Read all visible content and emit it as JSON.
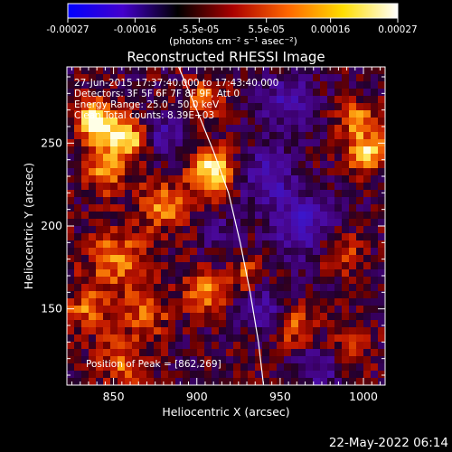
{
  "colorbar": {
    "tick_labels": [
      "-0.00027",
      "-0.00016",
      "-5.5e-05",
      "5.5e-05",
      "0.00016",
      "0.00027"
    ],
    "tick_values": [
      -0.00027,
      -0.00016,
      -5.5e-05,
      5.5e-05,
      0.00016,
      0.00027
    ],
    "range": [
      -0.00027,
      0.00027
    ],
    "units": "(photons cm⁻² s⁻¹ asec⁻²)",
    "colors": [
      "#0000ff",
      "#4400cc",
      "#000000",
      "#aa0000",
      "#ff6600",
      "#ffdd00",
      "#ffffff"
    ]
  },
  "chart_data": {
    "type": "heatmap",
    "title": "Reconstructed RHESSI Image",
    "xlabel": "Heliocentric X (arcsec)",
    "ylabel": "Heliocentric Y (arcsec)",
    "xlim": [
      822,
      1013
    ],
    "ylim": [
      104,
      296
    ],
    "xticks": [
      850,
      900,
      950,
      1000
    ],
    "yticks": [
      150,
      200,
      250
    ],
    "annotations": [
      "27-Jun-2015 17:37:40.000 to 17:43:40.000",
      "Detectors: 3F 5F 6F 7F 8F 9F, Att 0",
      "Energy Range: 25.0 - 50.0 keV",
      "Clean   Total counts: 8.39E+03"
    ],
    "peak_label": "Position of Peak = [862,269]",
    "peak": [
      862,
      269
    ],
    "limb": [
      [
        889,
        296
      ],
      [
        900,
        270
      ],
      [
        910,
        245
      ],
      [
        919,
        220
      ],
      [
        926,
        190
      ],
      [
        932,
        160
      ],
      [
        937,
        130
      ],
      [
        940,
        104
      ]
    ],
    "sources": [
      {
        "x": 840,
        "y": 262,
        "amp": 1.0,
        "s": 9
      },
      {
        "x": 858,
        "y": 252,
        "amp": 0.95,
        "s": 8
      },
      {
        "x": 845,
        "y": 232,
        "amp": 0.55,
        "s": 9
      },
      {
        "x": 910,
        "y": 232,
        "amp": 1.0,
        "s": 9
      },
      {
        "x": 905,
        "y": 275,
        "amp": 0.55,
        "s": 8
      },
      {
        "x": 880,
        "y": 212,
        "amp": 0.6,
        "s": 10
      },
      {
        "x": 852,
        "y": 180,
        "amp": 0.6,
        "s": 12
      },
      {
        "x": 835,
        "y": 150,
        "amp": 0.5,
        "s": 10
      },
      {
        "x": 870,
        "y": 148,
        "amp": 0.45,
        "s": 10
      },
      {
        "x": 905,
        "y": 160,
        "amp": 0.65,
        "s": 8
      },
      {
        "x": 855,
        "y": 118,
        "amp": 0.5,
        "s": 10
      },
      {
        "x": 930,
        "y": 170,
        "amp": 0.45,
        "s": 7
      },
      {
        "x": 1002,
        "y": 245,
        "amp": 0.85,
        "s": 8
      },
      {
        "x": 995,
        "y": 265,
        "amp": 0.65,
        "s": 7
      },
      {
        "x": 985,
        "y": 185,
        "amp": 0.5,
        "s": 9
      },
      {
        "x": 958,
        "y": 140,
        "amp": 0.5,
        "s": 9
      },
      {
        "x": 990,
        "y": 125,
        "amp": 0.4,
        "s": 9
      },
      {
        "x": 942,
        "y": 230,
        "amp": -0.55,
        "s": 12
      },
      {
        "x": 965,
        "y": 200,
        "amp": -0.6,
        "s": 14
      },
      {
        "x": 955,
        "y": 275,
        "amp": -0.5,
        "s": 12
      },
      {
        "x": 880,
        "y": 255,
        "amp": -0.45,
        "s": 9
      },
      {
        "x": 940,
        "y": 150,
        "amp": -0.5,
        "s": 10
      },
      {
        "x": 975,
        "y": 115,
        "amp": -0.45,
        "s": 10
      },
      {
        "x": 915,
        "y": 195,
        "amp": -0.3,
        "s": 8
      }
    ]
  },
  "footer": {
    "timestamp": "22-May-2022 06:14"
  }
}
